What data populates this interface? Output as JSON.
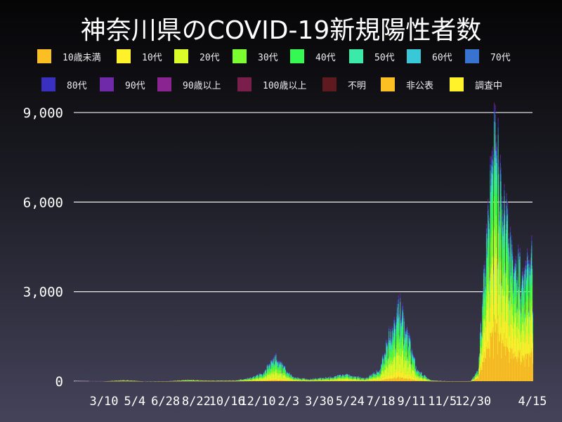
{
  "title": "神奈川県のCOVID-19新規陽性者数",
  "chart_data": {
    "type": "bar",
    "stacked": true,
    "title": "神奈川県のCOVID-19新規陽性者数",
    "xlabel": "",
    "ylabel": "",
    "ylim": [
      0,
      9000
    ],
    "xlim": [
      "2020-01-16",
      "2022-04-15"
    ],
    "grid": "horizontal",
    "legend_placement": "top",
    "yticks": [
      "0",
      "3,000",
      "6,000",
      "9,000"
    ],
    "xticks": [
      "3/10",
      "5/4",
      "6/28",
      "8/22",
      "10/16",
      "12/10",
      "2/3",
      "3/30",
      "5/24",
      "7/18",
      "9/11",
      "11/5",
      "12/30",
      "4/15"
    ],
    "xtick_dates": [
      "2020-03-10",
      "2020-05-04",
      "2020-06-28",
      "2020-08-22",
      "2020-10-16",
      "2020-12-10",
      "2021-02-03",
      "2021-03-30",
      "2021-05-24",
      "2021-07-18",
      "2021-09-11",
      "2021-11-05",
      "2021-12-30",
      "2022-04-15"
    ],
    "series": [
      {
        "name": "10歳未満",
        "color": "#fbbf24"
      },
      {
        "name": "10代",
        "color": "#fff22a"
      },
      {
        "name": "20代",
        "color": "#dcfc2a"
      },
      {
        "name": "30代",
        "color": "#7afc2e"
      },
      {
        "name": "40代",
        "color": "#36f852"
      },
      {
        "name": "50代",
        "color": "#3aeaa8"
      },
      {
        "name": "60代",
        "color": "#38c8d8"
      },
      {
        "name": "70代",
        "color": "#3a72d0"
      },
      {
        "name": "80代",
        "color": "#3a30c0"
      },
      {
        "name": "90代",
        "color": "#6e2aa8"
      },
      {
        "name": "90歳以上",
        "color": "#8a2490"
      },
      {
        "name": "100歳以上",
        "color": "#7a1e4c"
      },
      {
        "name": "不明",
        "color": "#5e1a1e"
      },
      {
        "name": "非公表",
        "color": "#fbbf24"
      },
      {
        "name": "調査中",
        "color": "#fff22a"
      }
    ],
    "daily_total_approx": [
      [
        "2020-01-16",
        0
      ],
      [
        "2020-03-10",
        5
      ],
      [
        "2020-04-15",
        50
      ],
      [
        "2020-05-20",
        5
      ],
      [
        "2020-07-01",
        10
      ],
      [
        "2020-08-05",
        60
      ],
      [
        "2020-09-15",
        30
      ],
      [
        "2020-11-01",
        40
      ],
      [
        "2020-12-01",
        150
      ],
      [
        "2020-12-20",
        300
      ],
      [
        "2021-01-08",
        900
      ],
      [
        "2021-01-20",
        600
      ],
      [
        "2021-02-10",
        150
      ],
      [
        "2021-03-10",
        80
      ],
      [
        "2021-04-20",
        150
      ],
      [
        "2021-05-15",
        250
      ],
      [
        "2021-06-20",
        100
      ],
      [
        "2021-07-15",
        400
      ],
      [
        "2021-08-05",
        1800
      ],
      [
        "2021-08-20",
        2700
      ],
      [
        "2021-09-01",
        1800
      ],
      [
        "2021-09-20",
        400
      ],
      [
        "2021-10-15",
        40
      ],
      [
        "2021-11-15",
        10
      ],
      [
        "2021-12-25",
        15
      ],
      [
        "2022-01-08",
        400
      ],
      [
        "2022-01-20",
        4500
      ],
      [
        "2022-02-03",
        8500
      ],
      [
        "2022-02-15",
        7000
      ],
      [
        "2022-03-01",
        5500
      ],
      [
        "2022-03-15",
        4000
      ],
      [
        "2022-03-25",
        3500
      ],
      [
        "2022-04-15",
        4200
      ]
    ],
    "age_share_2020_2021": [
      0.05,
      0.09,
      0.24,
      0.17,
      0.15,
      0.12,
      0.07,
      0.05,
      0.03,
      0.01,
      0.005,
      0.0,
      0.005,
      0.0,
      0.0
    ],
    "age_share_2022": [
      0.22,
      0.16,
      0.15,
      0.14,
      0.13,
      0.08,
      0.05,
      0.03,
      0.02,
      0.01,
      0.004,
      0.0,
      0.004,
      0.0,
      0.0
    ]
  }
}
